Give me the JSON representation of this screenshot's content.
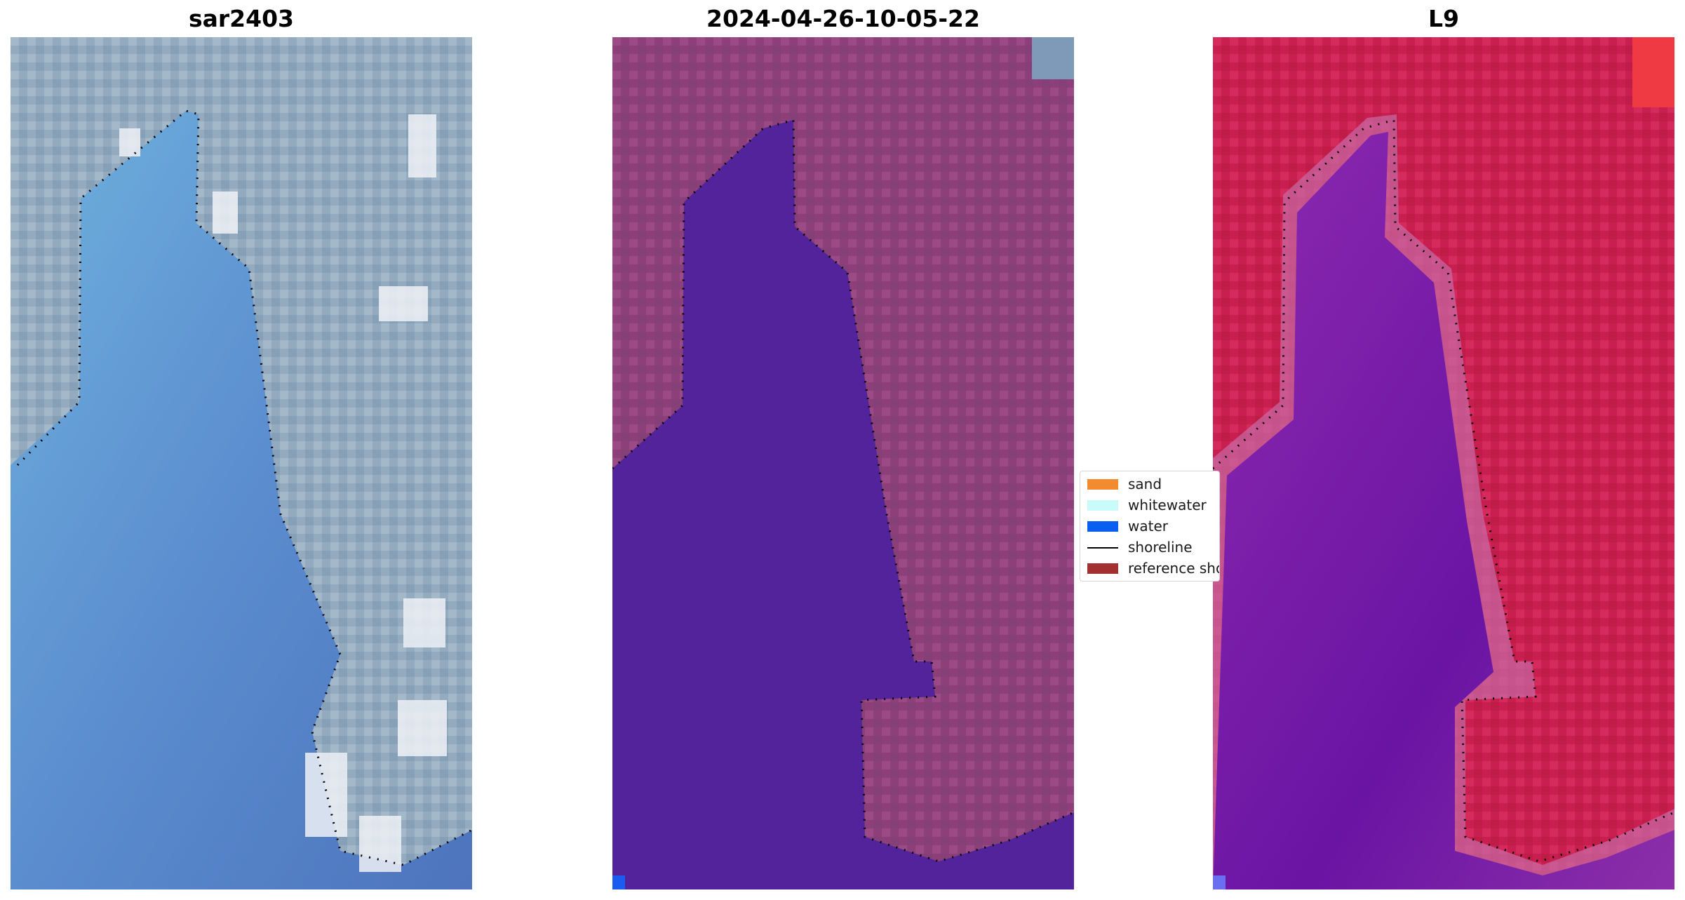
{
  "panels": [
    {
      "title": "sar2403"
    },
    {
      "title": "2024-04-26-10-05-22"
    },
    {
      "title": "L9"
    }
  ],
  "legend": {
    "items": [
      {
        "label": "sand",
        "symbol": "patch",
        "color": "#f28a30"
      },
      {
        "label": "whitewater",
        "symbol": "patch",
        "color": "#c9fbfb"
      },
      {
        "label": "water",
        "symbol": "patch",
        "color": "#0a5ff0"
      },
      {
        "label": "shoreline",
        "symbol": "line",
        "color": "#000000"
      },
      {
        "label": "reference shoreline",
        "symbol": "patch",
        "color": "#a2302e"
      }
    ]
  },
  "colors": {
    "classified_land": "#8d3f7a",
    "classified_water": "#52239a",
    "rgb_land": "#8ea7bb",
    "rgb_water": "#5a86c6",
    "index_land": "#c81e50",
    "index_water": "#7b1ea7",
    "shoreline_dots": "#000000"
  }
}
